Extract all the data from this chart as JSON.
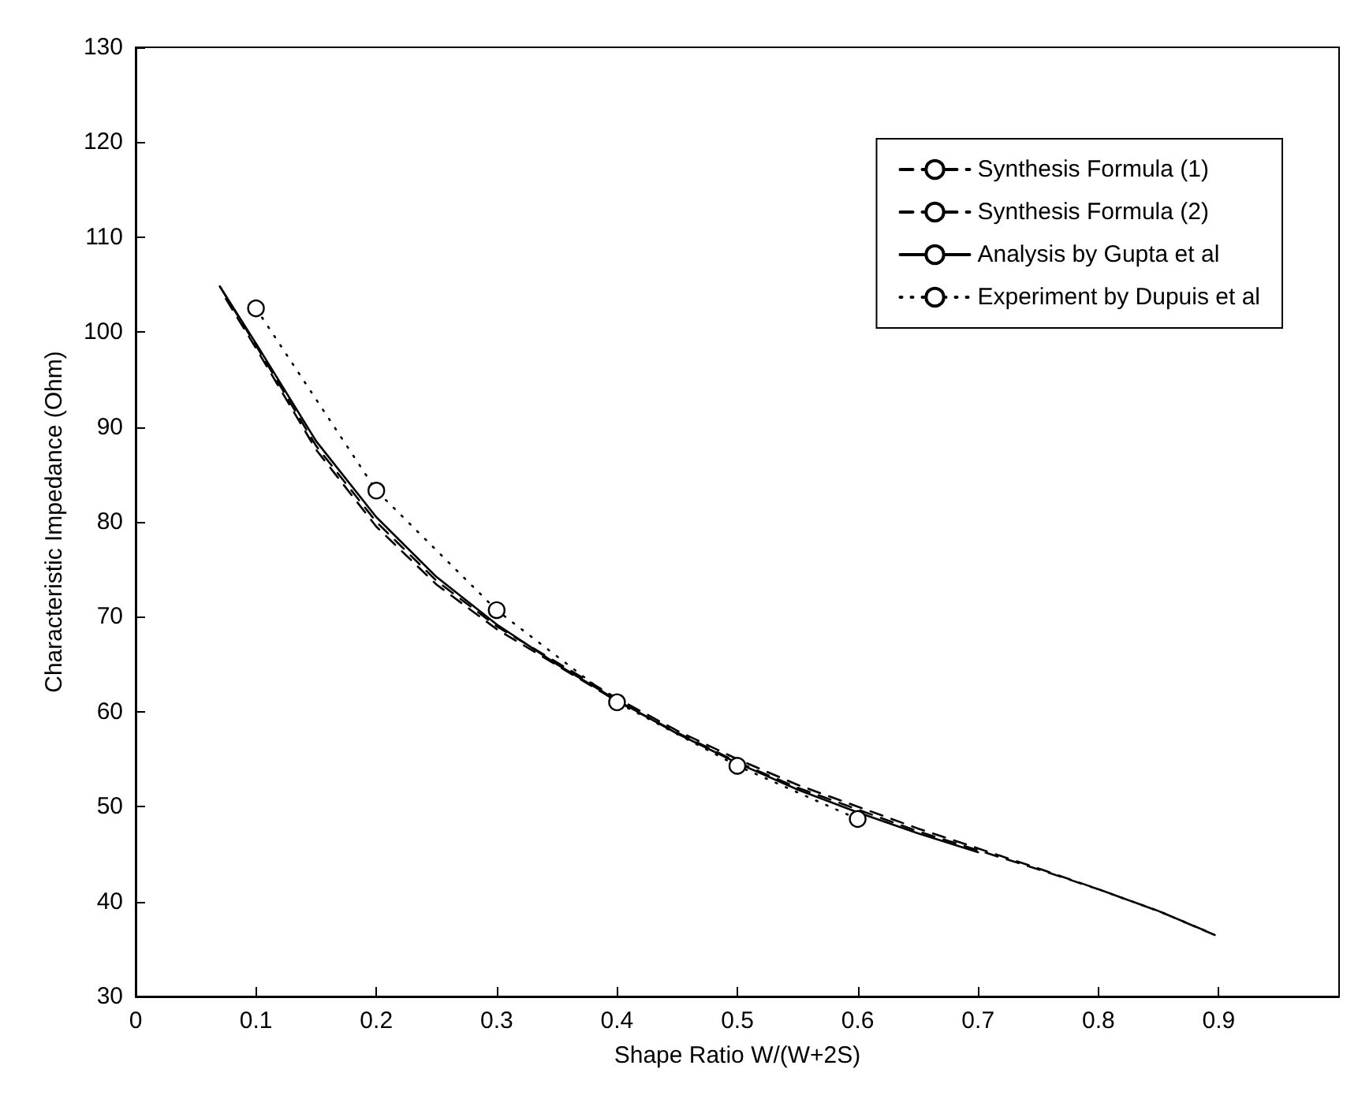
{
  "chart_data": {
    "type": "line",
    "xlabel": "Shape Ratio W/(W+2S)",
    "ylabel": "Characteristic Impedance (Ohm)",
    "xlim": [
      0,
      1
    ],
    "xticks": [
      0,
      0.1,
      0.2,
      0.3,
      0.4,
      0.5,
      0.6,
      0.7,
      0.8,
      0.9
    ],
    "ylim": [
      30,
      130
    ],
    "yticks": [
      30,
      40,
      50,
      60,
      70,
      80,
      90,
      100,
      110,
      120,
      130
    ],
    "grid": false,
    "legend": "top right",
    "series": [
      {
        "name": "Synthesis Formula (1)",
        "color": "#000000",
        "line_style": "dashed",
        "marker": "none",
        "x": [
          0.07,
          0.1,
          0.15,
          0.2,
          0.25,
          0.3,
          0.35,
          0.4,
          0.45,
          0.5,
          0.55,
          0.6,
          0.65,
          0.7,
          0.75,
          0.8,
          0.85,
          0.9
        ],
        "values": [
          104.8,
          98.6,
          88,
          80,
          73.8,
          69,
          65.2,
          61.4,
          58,
          55,
          52.3,
          50,
          47.7,
          45.6,
          43.5,
          41.3,
          39,
          36.3
        ]
      },
      {
        "name": "Synthesis Formula (2)",
        "color": "#000000",
        "line_style": "dashed",
        "marker": "none",
        "x": [
          0.075,
          0.1,
          0.15,
          0.2,
          0.25,
          0.3,
          0.35,
          0.4,
          0.45,
          0.5,
          0.55,
          0.6,
          0.65,
          0.7,
          0.75,
          0.8,
          0.85,
          0.895
        ],
        "values": [
          103.5,
          98.3,
          87.6,
          79.5,
          73.4,
          68.7,
          64.9,
          61.1,
          57.8,
          54.7,
          52,
          49.7,
          47.4,
          45.4,
          43.4,
          41.3,
          39,
          36.6
        ]
      },
      {
        "name": "Analysis by Gupta et al",
        "color": "#000000",
        "line_style": "solid",
        "marker": "none",
        "x": [
          0.07,
          0.1,
          0.15,
          0.2,
          0.25,
          0.3,
          0.35,
          0.4,
          0.45,
          0.5,
          0.55,
          0.6,
          0.65,
          0.7
        ],
        "values": [
          104.8,
          98.8,
          88.5,
          80.5,
          74.2,
          69.2,
          65,
          61.2,
          57.7,
          54.6,
          51.8,
          49.4,
          47.2,
          45.2
        ]
      },
      {
        "name": "Experiment by Dupuis et al",
        "color": "#000000",
        "line_style": "dotted",
        "marker": "circle",
        "x": [
          0.1,
          0.2,
          0.3,
          0.4,
          0.5,
          0.6
        ],
        "values": [
          102.5,
          83.3,
          70.7,
          61,
          54.3,
          48.7
        ]
      }
    ]
  }
}
